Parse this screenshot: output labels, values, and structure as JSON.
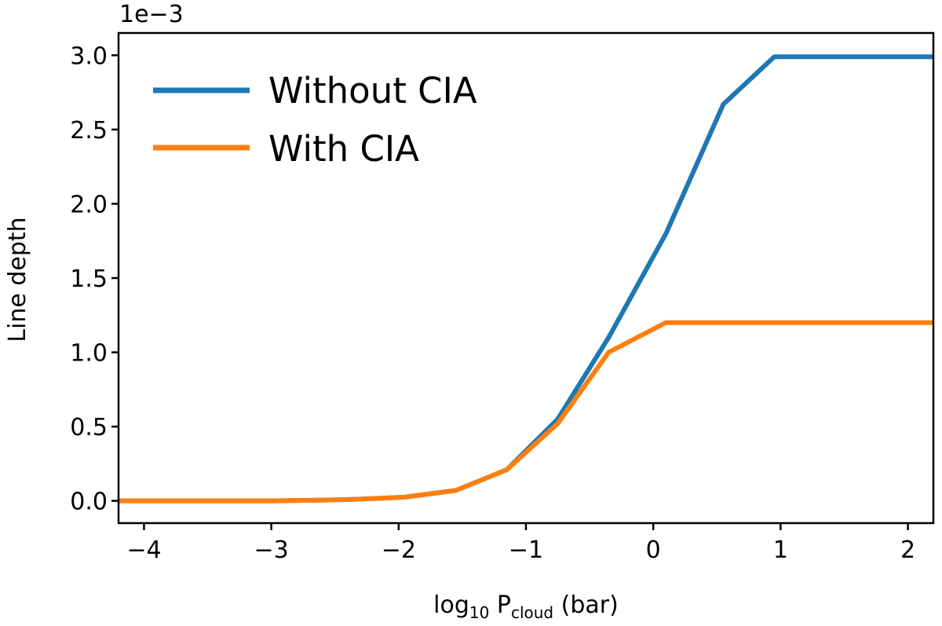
{
  "chart_data": {
    "type": "line",
    "xlabel": {
      "base": "log",
      "base_sub": "10",
      "p": " P",
      "p_sub": "cloud",
      "unit": " (bar)"
    },
    "ylabel": "Line depth",
    "y_offset_label": "1e−3",
    "xlim": [
      -4.2,
      2.2
    ],
    "ylim": [
      -0.15,
      3.15
    ],
    "xticks": [
      {
        "v": -4,
        "label": "−4"
      },
      {
        "v": -3,
        "label": "−3"
      },
      {
        "v": -2,
        "label": "−2"
      },
      {
        "v": -1,
        "label": "−1"
      },
      {
        "v": 0,
        "label": "0"
      },
      {
        "v": 1,
        "label": "1"
      },
      {
        "v": 2,
        "label": "2"
      }
    ],
    "yticks": [
      {
        "v": 0.0,
        "label": "0.0"
      },
      {
        "v": 0.5,
        "label": "0.5"
      },
      {
        "v": 1.0,
        "label": "1.0"
      },
      {
        "v": 1.5,
        "label": "1.5"
      },
      {
        "v": 2.0,
        "label": "2.0"
      },
      {
        "v": 2.5,
        "label": "2.5"
      },
      {
        "v": 3.0,
        "label": "3.0"
      }
    ],
    "grid": false,
    "legend_position": "top-left",
    "series": [
      {
        "name": "Without CIA",
        "color": "#1f77b4",
        "x": [
          -4.2,
          -3.8,
          -3.4,
          -3.0,
          -2.6,
          -2.35,
          -1.95,
          -1.55,
          -1.15,
          -0.75,
          -0.35,
          0.1,
          0.55,
          0.95,
          1.35,
          2.2
        ],
        "y": [
          0.0,
          0.0,
          0.0,
          0.0,
          0.005,
          0.01,
          0.025,
          0.07,
          0.21,
          0.55,
          1.1,
          1.8,
          2.67,
          2.99,
          2.99,
          2.99
        ]
      },
      {
        "name": "With CIA",
        "color": "#ff7f0e",
        "x": [
          -4.2,
          -3.8,
          -3.4,
          -3.0,
          -2.6,
          -2.35,
          -1.95,
          -1.55,
          -1.15,
          -0.75,
          -0.35,
          0.1,
          0.55,
          0.95,
          1.35,
          2.2
        ],
        "y": [
          0.0,
          0.0,
          0.0,
          0.0,
          0.005,
          0.01,
          0.025,
          0.07,
          0.21,
          0.52,
          1.0,
          1.2,
          1.2,
          1.2,
          1.2,
          1.2
        ]
      }
    ]
  }
}
